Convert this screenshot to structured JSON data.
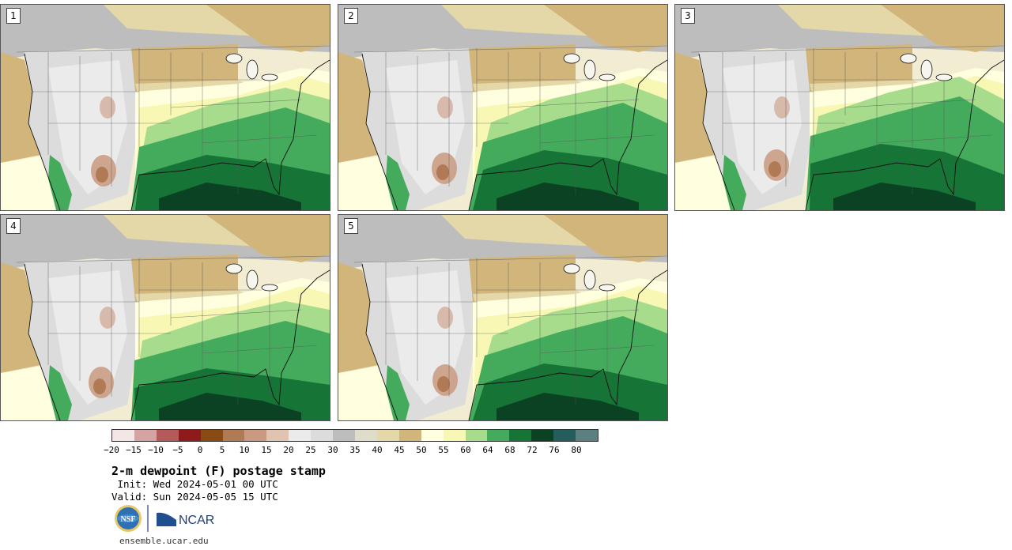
{
  "panels": [
    {
      "label": "1"
    },
    {
      "label": "2"
    },
    {
      "label": "3"
    },
    {
      "label": "4"
    },
    {
      "label": "5"
    }
  ],
  "colorbar": {
    "colors": [
      "#f2e6e6",
      "#d6a3a3",
      "#b55a5a",
      "#8e1a1a",
      "#8a4a14",
      "#b07a55",
      "#c99a80",
      "#e0c3b0",
      "#ebebeb",
      "#dcdcdc",
      "#bdbdbd",
      "#dfdcc8",
      "#e4d8a8",
      "#d1b57a",
      "#ffffe0",
      "#f8f8b4",
      "#a6dc8c",
      "#45ab5c",
      "#157436",
      "#0b4223",
      "#255c5c",
      "#5c8080"
    ],
    "tick_labels": [
      "−20",
      "−15",
      "−10",
      "−5",
      "0",
      "5",
      "10",
      "15",
      "20",
      "25",
      "30",
      "35",
      "40",
      "45",
      "50",
      "55",
      "60",
      "64",
      "68",
      "72",
      "76",
      "80"
    ]
  },
  "title": "2-m dewpoint (F) postage stamp",
  "init_line": " Init: Wed 2024-05-01 00 UTC",
  "valid_line": "Valid: Sun 2024-05-05 15 UTC",
  "logos": {
    "nsf": "NSF",
    "ncar": "NCAR"
  },
  "footer": "ensemble.ucar.edu"
}
